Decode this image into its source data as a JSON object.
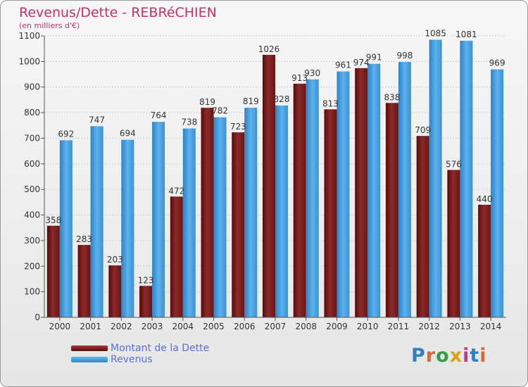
{
  "header": {
    "title": "Revenus/Dette - REBRéCHIEN",
    "subtitle": "(en milliers d'€)"
  },
  "legend": {
    "debt_label": "Montant de la Dette",
    "revenue_label": "Revenus"
  },
  "logo": {
    "text": "Proxiti"
  },
  "colors": {
    "debt": "#7a1c1c",
    "revenue": "#4aa3e0",
    "title": "#c4306a",
    "legend_text": "#5b6ee1"
  },
  "chart_data": {
    "type": "bar",
    "title": "Revenus/Dette - REBRéCHIEN",
    "subtitle": "(en milliers d'€)",
    "categories": [
      "2000",
      "2001",
      "2002",
      "2003",
      "2004",
      "2005",
      "2006",
      "2007",
      "2008",
      "2009",
      "2010",
      "2011",
      "2012",
      "2013",
      "2014"
    ],
    "series": [
      {
        "name": "Montant de la Dette",
        "values": [
          358,
          283,
          203,
          123,
          472,
          819,
          723,
          1026,
          913,
          813,
          974,
          838,
          709,
          576,
          440
        ]
      },
      {
        "name": "Revenus",
        "values": [
          692,
          747,
          694,
          764,
          738,
          782,
          819,
          828,
          930,
          961,
          991,
          998,
          1085,
          1081,
          969
        ]
      }
    ],
    "ylim": [
      0,
      1100
    ],
    "yticks": [
      0,
      100,
      200,
      300,
      400,
      500,
      600,
      700,
      800,
      900,
      1000,
      1100
    ],
    "grid": true,
    "legend_position": "bottom-left"
  }
}
